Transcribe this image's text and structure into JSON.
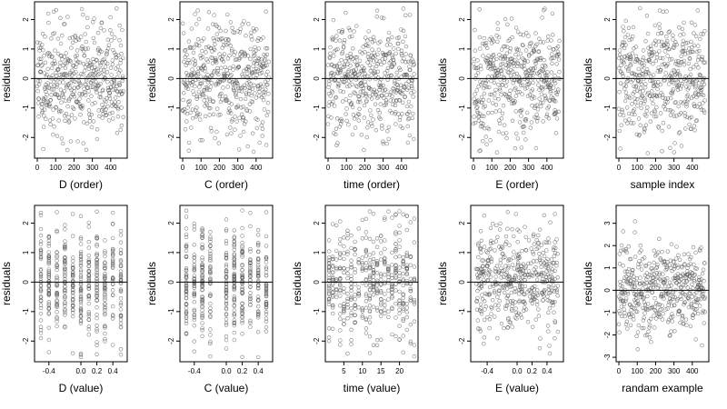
{
  "chart_data": [
    {
      "type": "scatter",
      "panel_row": 0,
      "panel_col": 0,
      "xlabel": "D (order)",
      "ylabel": "residuals",
      "x_mode": "index",
      "n": 470,
      "seed": 11,
      "xlim": [
        -15,
        490
      ],
      "xticks": [
        0,
        100,
        200,
        300,
        400
      ],
      "xticklabels": [
        "0",
        "100",
        "200",
        "300",
        "400"
      ],
      "ylim": [
        -2.7,
        2.6
      ],
      "yticks": [
        -2,
        -1,
        0,
        1,
        2
      ],
      "yticklabels": [
        "-2",
        "-1",
        "0",
        "1",
        "2"
      ],
      "zero_line": true
    },
    {
      "type": "scatter",
      "panel_row": 0,
      "panel_col": 1,
      "xlabel": "C (order)",
      "ylabel": "residuals",
      "x_mode": "index",
      "n": 470,
      "seed": 12,
      "xlim": [
        -15,
        490
      ],
      "xticks": [
        0,
        100,
        200,
        300,
        400
      ],
      "xticklabels": [
        "0",
        "100",
        "200",
        "300",
        "400"
      ],
      "ylim": [
        -2.7,
        2.6
      ],
      "yticks": [
        -2,
        -1,
        0,
        1,
        2
      ],
      "yticklabels": [
        "-2",
        "-1",
        "0",
        "1",
        "2"
      ],
      "zero_line": true
    },
    {
      "type": "scatter",
      "panel_row": 0,
      "panel_col": 2,
      "xlabel": "time (order)",
      "ylabel": "residuals",
      "x_mode": "index",
      "n": 470,
      "seed": 13,
      "xlim": [
        -15,
        490
      ],
      "xticks": [
        0,
        100,
        200,
        300,
        400
      ],
      "xticklabels": [
        "0",
        "100",
        "200",
        "300",
        "400"
      ],
      "ylim": [
        -2.7,
        2.6
      ],
      "yticks": [
        -2,
        -1,
        0,
        1,
        2
      ],
      "yticklabels": [
        "-2",
        "-1",
        "0",
        "1",
        "2"
      ],
      "zero_line": true
    },
    {
      "type": "scatter",
      "panel_row": 0,
      "panel_col": 3,
      "xlabel": "E (order)",
      "ylabel": "residuals",
      "x_mode": "index",
      "n": 470,
      "seed": 14,
      "xlim": [
        -15,
        490
      ],
      "xticks": [
        0,
        100,
        200,
        300,
        400
      ],
      "xticklabels": [
        "0",
        "100",
        "200",
        "300",
        "400"
      ],
      "ylim": [
        -2.7,
        2.6
      ],
      "yticks": [
        -2,
        -1,
        0,
        1,
        2
      ],
      "yticklabels": [
        "-2",
        "-1",
        "0",
        "1",
        "2"
      ],
      "zero_line": true
    },
    {
      "type": "scatter",
      "panel_row": 0,
      "panel_col": 4,
      "xlabel": "sample index",
      "ylabel": "residuals",
      "x_mode": "index",
      "n": 470,
      "seed": 15,
      "xlim": [
        -15,
        490
      ],
      "xticks": [
        0,
        100,
        200,
        300,
        400
      ],
      "xticklabels": [
        "0",
        "100",
        "200",
        "300",
        "400"
      ],
      "ylim": [
        -2.7,
        2.6
      ],
      "yticks": [
        -2,
        -1,
        0,
        1,
        2
      ],
      "yticklabels": [
        "-2",
        "-1",
        "0",
        "1",
        "2"
      ],
      "zero_line": true
    },
    {
      "type": "scatter",
      "panel_row": 1,
      "panel_col": 0,
      "xlabel": "D (value)",
      "ylabel": "residuals",
      "x_mode": "discrete",
      "x_values": [
        -0.5,
        -0.4,
        -0.3,
        -0.2,
        -0.1,
        0.0,
        0.1,
        0.2,
        0.3,
        0.4,
        0.5
      ],
      "n": 470,
      "seed": 21,
      "xlim": [
        -0.58,
        0.58
      ],
      "xticks": [
        -0.4,
        0.0,
        0.2,
        0.4
      ],
      "xticklabels": [
        "-0.4",
        "0.0",
        "0.2",
        "0.4"
      ],
      "ylim": [
        -2.7,
        2.6
      ],
      "yticks": [
        -2,
        -1,
        0,
        1,
        2
      ],
      "yticklabels": [
        "-2",
        "-1",
        "0",
        "1",
        "2"
      ],
      "zero_line": true
    },
    {
      "type": "scatter",
      "panel_row": 1,
      "panel_col": 1,
      "xlabel": "C (value)",
      "ylabel": "residuals",
      "x_mode": "discrete",
      "x_values": [
        -0.5,
        -0.4,
        -0.3,
        -0.2,
        0.0,
        0.1,
        0.2,
        0.3,
        0.4,
        0.5
      ],
      "n": 470,
      "seed": 22,
      "xlim": [
        -0.58,
        0.58
      ],
      "xticks": [
        -0.4,
        0.0,
        0.2,
        0.4
      ],
      "xticklabels": [
        "-0.4",
        "0.0",
        "0.2",
        "0.4"
      ],
      "ylim": [
        -2.7,
        2.6
      ],
      "yticks": [
        -2,
        -1,
        0,
        1,
        2
      ],
      "yticklabels": [
        "-2",
        "-1",
        "0",
        "1",
        "2"
      ],
      "zero_line": true
    },
    {
      "type": "scatter",
      "panel_row": 1,
      "panel_col": 2,
      "xlabel": "time (value)",
      "ylabel": "residuals",
      "x_mode": "discrete",
      "x_values": [
        1,
        2,
        3,
        4,
        5,
        6,
        7,
        8,
        9,
        10,
        11,
        12,
        13,
        14,
        15,
        16,
        17,
        18,
        19,
        20,
        21,
        22,
        23,
        24
      ],
      "n": 470,
      "seed": 23,
      "xlim": [
        0,
        25
      ],
      "xticks": [
        5,
        10,
        15,
        20
      ],
      "xticklabels": [
        "5",
        "10",
        "15",
        "20"
      ],
      "ylim": [
        -2.7,
        2.6
      ],
      "yticks": [
        -2,
        -1,
        0,
        1,
        2
      ],
      "yticklabels": [
        "-2",
        "-1",
        "0",
        "1",
        "2"
      ],
      "zero_line": true
    },
    {
      "type": "scatter",
      "panel_row": 1,
      "panel_col": 3,
      "xlabel": "E (value)",
      "ylabel": "residuals",
      "x_mode": "continuous",
      "n": 470,
      "seed": 24,
      "xlim": [
        -0.62,
        0.62
      ],
      "xticks": [
        -0.4,
        0.0,
        0.2,
        0.4
      ],
      "xticklabels": [
        "-0.4",
        "0.0",
        "0.2",
        "0.4"
      ],
      "ylim": [
        -2.7,
        2.6
      ],
      "yticks": [
        -2,
        -1,
        0,
        1,
        2
      ],
      "yticklabels": [
        "-2",
        "-1",
        "0",
        "1",
        "2"
      ],
      "zero_line": true
    },
    {
      "type": "scatter",
      "panel_row": 1,
      "panel_col": 4,
      "xlabel": "randam example",
      "ylabel": "residuals",
      "x_mode": "index",
      "n": 470,
      "seed": 25,
      "xlim": [
        -15,
        490
      ],
      "xticks": [
        0,
        100,
        200,
        300,
        400
      ],
      "xticklabels": [
        "0",
        "100",
        "200",
        "300",
        "400"
      ],
      "ylim": [
        -3.2,
        3.8
      ],
      "yticks": [
        -3,
        -2,
        -1,
        0,
        1,
        2,
        3
      ],
      "yticklabels": [
        "-3",
        "-2",
        "-1",
        "0",
        "1",
        "2",
        "3"
      ],
      "zero_line": true
    }
  ]
}
